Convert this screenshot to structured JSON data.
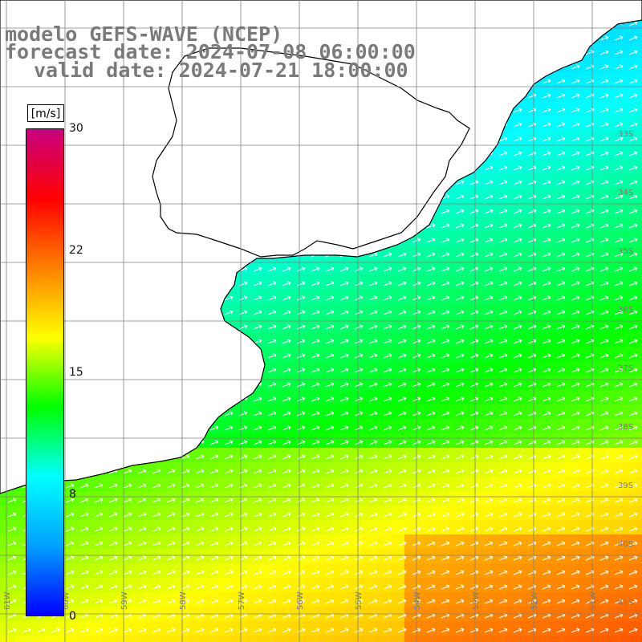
{
  "title": {
    "line1": "modelo GEFS-WAVE (NCEP)",
    "line2": "forecast date: 2024-07-08 06:00:00",
    "line3": "valid date: 2024-07-21 18:00:00"
  },
  "colorbar": {
    "units": "[m/s]",
    "min": 0,
    "max": 30,
    "ticks": [
      "30",
      "22",
      "15",
      "8",
      "0"
    ],
    "tick_values": [
      30,
      22,
      15,
      8,
      0
    ],
    "colors": [
      "#0000ff",
      "#00a0ff",
      "#00ffff",
      "#00ff00",
      "#ffff00",
      "#ff8000",
      "#ff0000",
      "#c80080"
    ]
  },
  "map": {
    "region": "Rio de la Plata / South-west Atlantic",
    "lon_labels": [
      "61W",
      "60W",
      "59W",
      "58W",
      "57W",
      "56W",
      "55W",
      "54W",
      "53W",
      "52W",
      "51W"
    ],
    "lat_labels": [
      "33S",
      "34S",
      "35S",
      "36S",
      "37S",
      "38S",
      "39S",
      "40S",
      "41S"
    ],
    "land_color": "#ffffff",
    "grid_color": "#808080",
    "arrow_color": "#ffffff",
    "coast_color": "#000000"
  }
}
